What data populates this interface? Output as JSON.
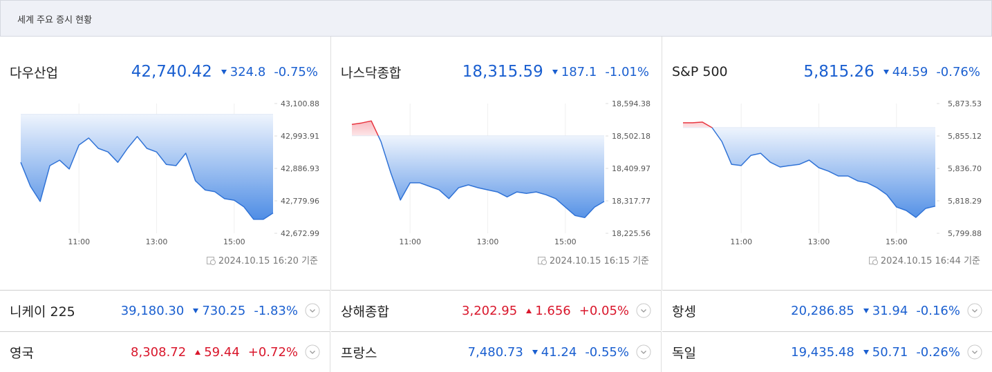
{
  "header": {
    "title": "세계 주요 증시 현황"
  },
  "colors": {
    "up": "#d9162b",
    "down": "#1a5fd0"
  },
  "featured": [
    {
      "name": "다우산업",
      "price": "42,740.42",
      "change": "324.8",
      "percent": "-0.75%",
      "direction": "down",
      "timestamp": "2024.10.15 16:20 기준",
      "chart": {
        "type": "line",
        "x": [
          9.5,
          9.75,
          10,
          10.25,
          10.5,
          10.75,
          11,
          11.25,
          11.5,
          11.75,
          12,
          12.25,
          12.5,
          12.75,
          13,
          13.25,
          13.5,
          13.75,
          14,
          14.25,
          14.5,
          14.75,
          15,
          15.25,
          15.5,
          15.75,
          16
        ],
        "values": [
          42907,
          42828,
          42778,
          42896,
          42914,
          42885,
          42964,
          42987,
          42953,
          42941,
          42907,
          42953,
          42992,
          42953,
          42941,
          42900,
          42896,
          42937,
          42846,
          42816,
          42810,
          42787,
          42782,
          42760,
          42719,
          42719,
          42740
        ],
        "reference": 43065.22,
        "xlim": [
          9.5,
          16
        ],
        "ylim": [
          42672.99,
          43100.88
        ],
        "xticks": [
          {
            "value": 11,
            "label": "11:00"
          },
          {
            "value": 13,
            "label": "13:00"
          },
          {
            "value": 15,
            "label": "15:00"
          }
        ],
        "yticks": [
          {
            "value": 43100.88,
            "label": "43,100.88"
          },
          {
            "value": 42993.91,
            "label": "42,993.91"
          },
          {
            "value": 42886.93,
            "label": "42,886.93"
          },
          {
            "value": 42779.96,
            "label": "42,779.96"
          },
          {
            "value": 42672.99,
            "label": "42,672.99"
          }
        ]
      }
    },
    {
      "name": "나스닥종합",
      "price": "18,315.59",
      "change": "187.1",
      "percent": "-1.01%",
      "direction": "down",
      "timestamp": "2024.10.15 16:15 기준",
      "chart": {
        "type": "line",
        "x": [
          9.5,
          9.75,
          10,
          10.25,
          10.5,
          10.75,
          11,
          11.25,
          11.5,
          11.75,
          12,
          12.25,
          12.5,
          12.75,
          13,
          13.25,
          13.5,
          13.75,
          14,
          14.25,
          14.5,
          14.75,
          15,
          15.25,
          15.5,
          15.75,
          16
        ],
        "values": [
          18535,
          18539,
          18545,
          18486,
          18398,
          18320,
          18369,
          18369,
          18359,
          18349,
          18324,
          18355,
          18363,
          18355,
          18349,
          18343,
          18329,
          18343,
          18339,
          18343,
          18335,
          18324,
          18300,
          18276,
          18270,
          18300,
          18316
        ],
        "reference": 18502.69,
        "xlim": [
          9.5,
          16
        ],
        "ylim": [
          18225.56,
          18594.38
        ],
        "xticks": [
          {
            "value": 11,
            "label": "11:00"
          },
          {
            "value": 13,
            "label": "13:00"
          },
          {
            "value": 15,
            "label": "15:00"
          }
        ],
        "yticks": [
          {
            "value": 18594.38,
            "label": "18,594.38"
          },
          {
            "value": 18502.18,
            "label": "18,502.18"
          },
          {
            "value": 18409.97,
            "label": "18,409.97"
          },
          {
            "value": 18317.77,
            "label": "18,317.77"
          },
          {
            "value": 18225.56,
            "label": "18,225.56"
          }
        ]
      }
    },
    {
      "name": "S&P 500",
      "price": "5,815.26",
      "change": "44.59",
      "percent": "-0.76%",
      "direction": "down",
      "timestamp": "2024.10.15 16:44 기준",
      "chart": {
        "type": "line",
        "x": [
          9.5,
          9.75,
          10,
          10.25,
          10.5,
          10.75,
          11,
          11.25,
          11.5,
          11.75,
          12,
          12.25,
          12.5,
          12.75,
          13,
          13.25,
          13.5,
          13.75,
          14,
          14.25,
          14.5,
          14.75,
          15,
          15.25,
          15.5,
          15.75,
          16
        ],
        "values": [
          5862.6,
          5862.6,
          5863,
          5859.8,
          5852,
          5839,
          5838.3,
          5844.1,
          5845.3,
          5840.2,
          5837.5,
          5838.3,
          5839,
          5841.4,
          5837.1,
          5835.1,
          5832.4,
          5832.4,
          5829.6,
          5828.5,
          5825.7,
          5821.8,
          5814.8,
          5812.8,
          5808.9,
          5814,
          5815.26
        ],
        "reference": 5859.85,
        "xlim": [
          9.5,
          16
        ],
        "ylim": [
          5799.88,
          5873.53
        ],
        "xticks": [
          {
            "value": 11,
            "label": "11:00"
          },
          {
            "value": 13,
            "label": "13:00"
          },
          {
            "value": 15,
            "label": "15:00"
          }
        ],
        "yticks": [
          {
            "value": 5873.53,
            "label": "5,873.53"
          },
          {
            "value": 5855.12,
            "label": "5,855.12"
          },
          {
            "value": 5836.7,
            "label": "5,836.70"
          },
          {
            "value": 5818.29,
            "label": "5,818.29"
          },
          {
            "value": 5799.88,
            "label": "5,799.88"
          }
        ]
      }
    }
  ],
  "others": [
    {
      "name": "니케이 225",
      "price": "39,180.30",
      "change": "730.25",
      "percent": "-1.83%",
      "direction": "down"
    },
    {
      "name": "상해종합",
      "price": "3,202.95",
      "change": "1.656",
      "percent": "+0.05%",
      "direction": "up"
    },
    {
      "name": "항셍",
      "price": "20,286.85",
      "change": "31.94",
      "percent": "-0.16%",
      "direction": "down"
    },
    {
      "name": "영국",
      "price": "8,308.72",
      "change": "59.44",
      "percent": "+0.72%",
      "direction": "up"
    },
    {
      "name": "프랑스",
      "price": "7,480.73",
      "change": "41.24",
      "percent": "-0.55%",
      "direction": "down"
    },
    {
      "name": "독일",
      "price": "19,435.48",
      "change": "50.71",
      "percent": "-0.26%",
      "direction": "down"
    }
  ]
}
